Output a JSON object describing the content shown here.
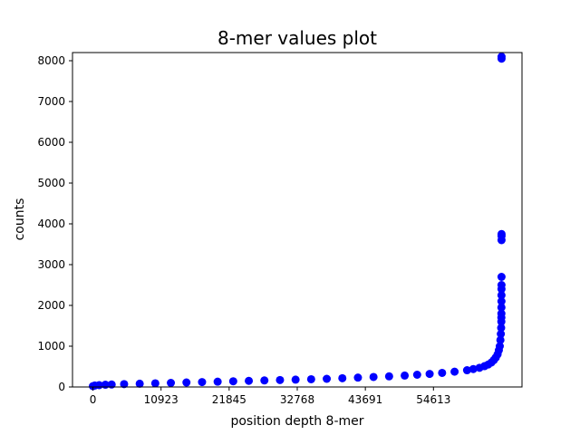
{
  "chart_data": {
    "type": "scatter",
    "title": "8-mer values plot",
    "xlabel": "position depth 8-mer",
    "ylabel": "counts",
    "xlim": [
      -3277,
      68813
    ],
    "ylim": [
      0,
      8200
    ],
    "x_ticks": [
      {
        "value": 0,
        "label": "0"
      },
      {
        "value": 10923,
        "label": "10923"
      },
      {
        "value": 21845,
        "label": "21845"
      },
      {
        "value": 32768,
        "label": "32768"
      },
      {
        "value": 43691,
        "label": "43691"
      },
      {
        "value": 54613,
        "label": "54613"
      }
    ],
    "y_ticks": [
      0,
      1000,
      2000,
      3000,
      4000,
      5000,
      6000,
      7000,
      8000
    ],
    "grid": false,
    "marker_color": "#0000ff",
    "series": [
      {
        "x": [
          0,
          300,
          1000,
          2000,
          3000,
          5000,
          7500,
          10000,
          12500,
          15000,
          17500,
          20000,
          22500,
          25000,
          27500,
          30000,
          32500,
          35000,
          37500,
          40000,
          42500,
          45000,
          47500,
          50000,
          52000,
          54000,
          56000,
          58000,
          60000,
          61000,
          62000,
          62800,
          63400,
          63900,
          64300,
          64600,
          64900,
          65100,
          65250,
          65350,
          65420,
          65470,
          65500,
          65505,
          65510,
          65515,
          65520,
          65523,
          65525,
          65527,
          65529,
          65531,
          65532,
          65533,
          65534,
          65535
        ],
        "y": [
          20,
          35,
          45,
          55,
          60,
          70,
          80,
          90,
          100,
          110,
          120,
          130,
          140,
          150,
          160,
          170,
          180,
          190,
          200,
          215,
          230,
          245,
          260,
          280,
          300,
          320,
          345,
          375,
          410,
          440,
          470,
          510,
          550,
          600,
          660,
          720,
          800,
          900,
          1000,
          1150,
          1300,
          1450,
          1600,
          1700,
          1800,
          1950,
          2100,
          2250,
          2400,
          2500,
          2700,
          3600,
          3700,
          3750,
          8050,
          8100
        ]
      }
    ]
  }
}
